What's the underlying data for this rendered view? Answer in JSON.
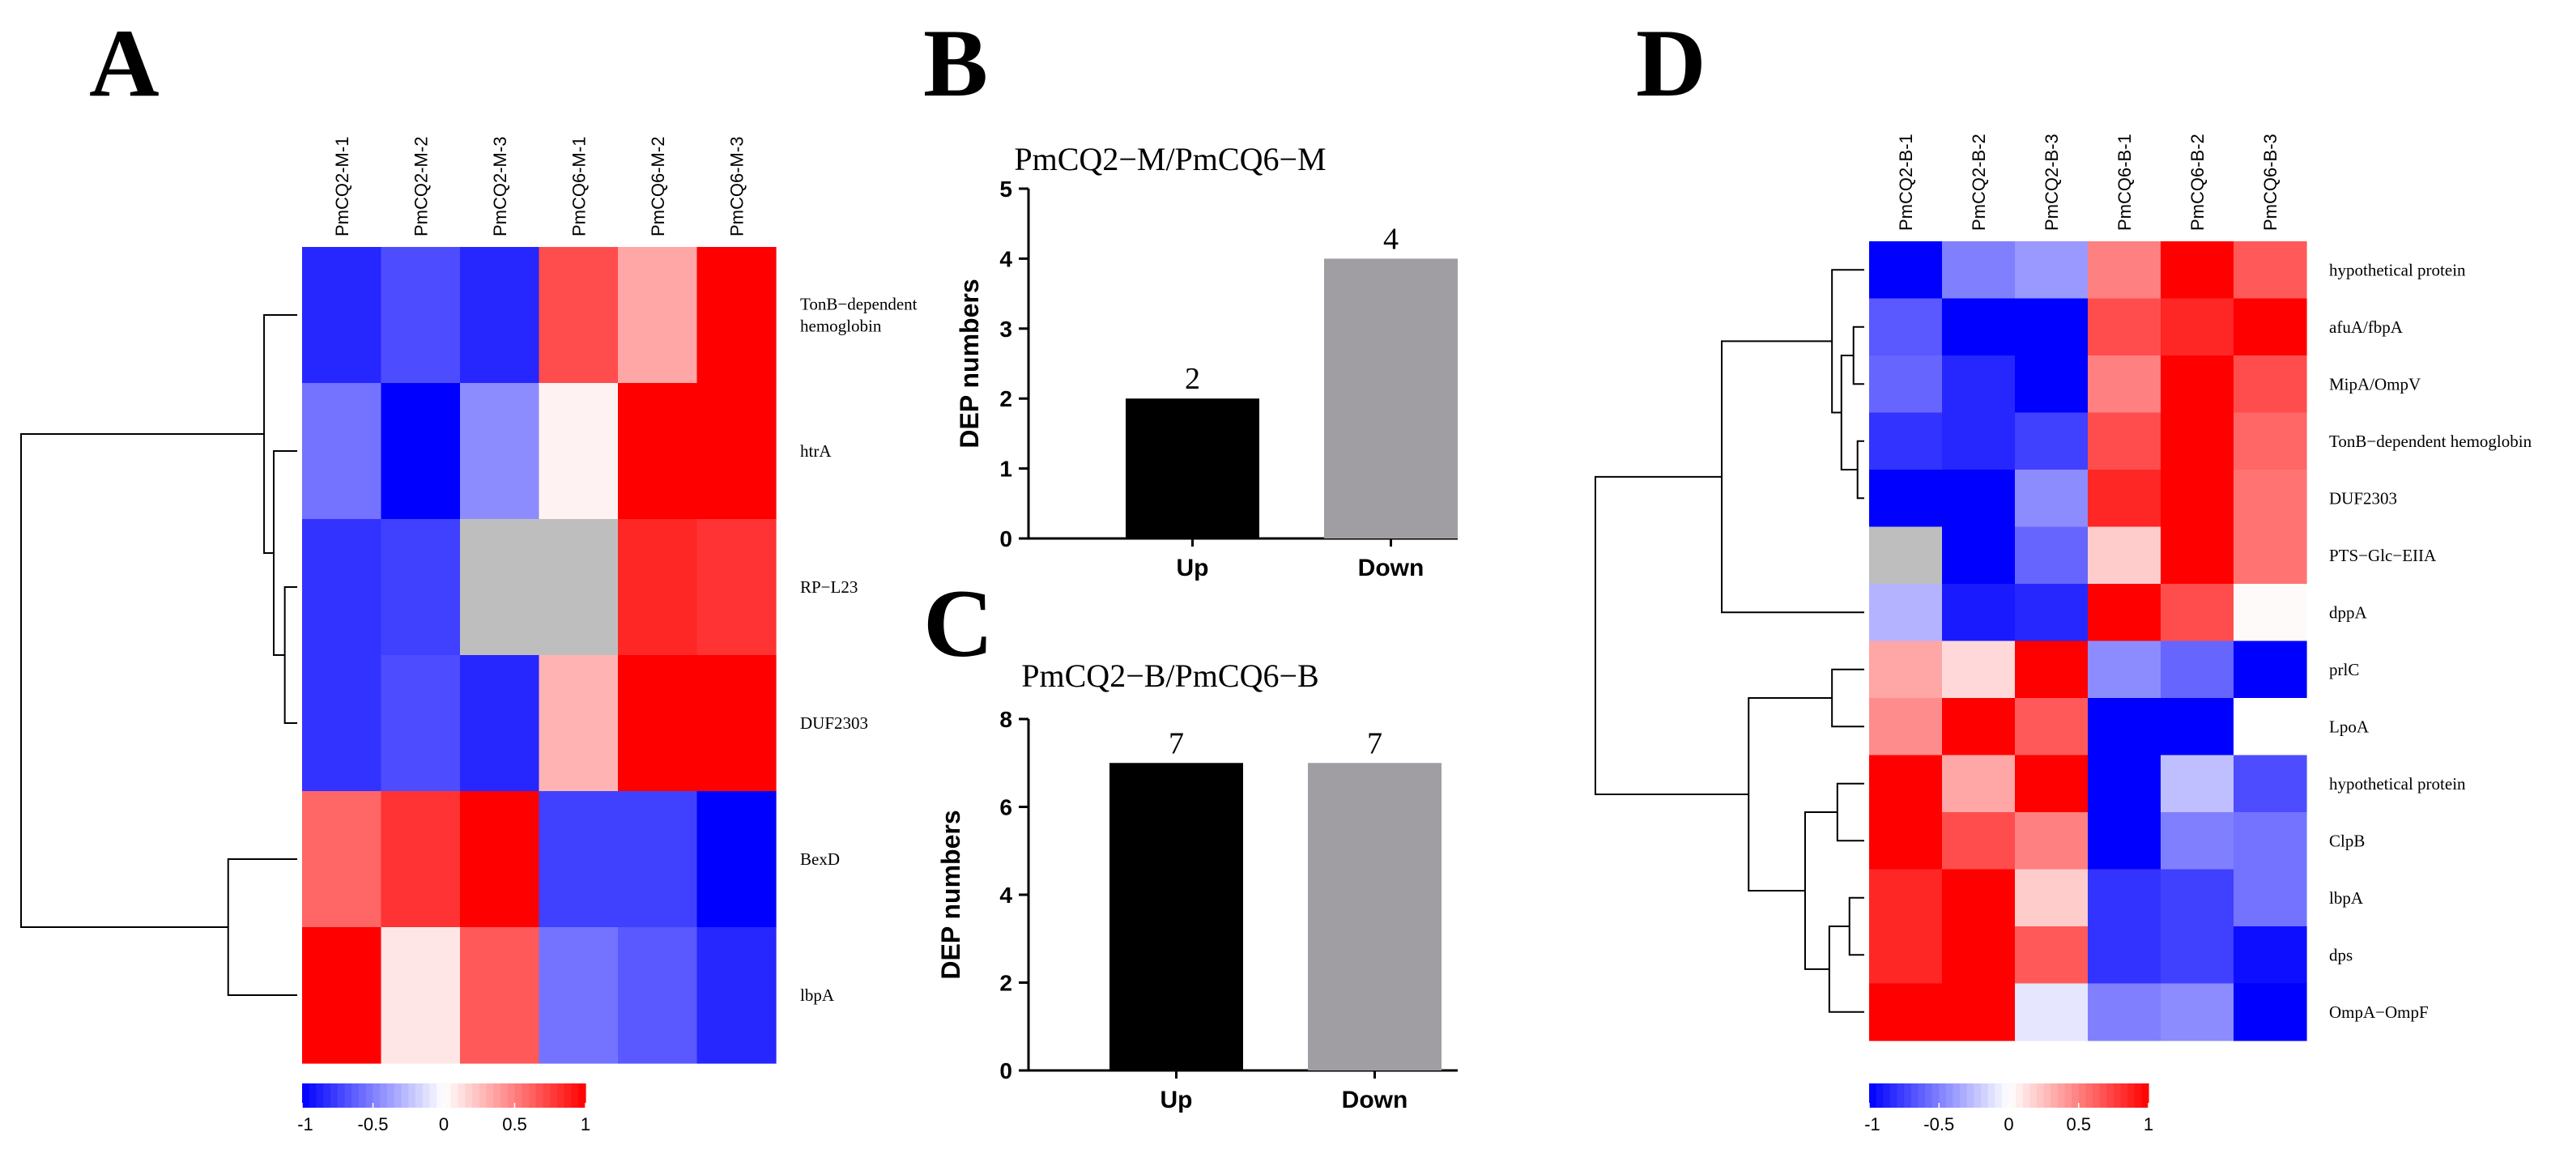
{
  "colors": {
    "up": "#000000",
    "down": "#a19ea3",
    "high": "#ff0000",
    "mid": "#ffffff",
    "low": "#0000ff",
    "missing": "#bebebe"
  },
  "chart_data": [
    {
      "id": "A",
      "type": "heatmap",
      "panel_label": "A",
      "columns": [
        "PmCQ2-M-1",
        "PmCQ2-M-2",
        "PmCQ2-M-3",
        "PmCQ6-M-1",
        "PmCQ6-M-2",
        "PmCQ6-M-3"
      ],
      "rows": [
        {
          "label_lines": [
            "TonB−dependent",
            "hemoglobin"
          ],
          "values": [
            -0.85,
            -0.7,
            -0.85,
            0.7,
            0.35,
            1.0
          ]
        },
        {
          "label_lines": [
            "htrA"
          ],
          "values": [
            -0.55,
            -1.0,
            -0.45,
            0.05,
            1.0,
            1.0
          ]
        },
        {
          "label_lines": [
            "RP−L23"
          ],
          "values": [
            -0.8,
            -0.75,
            null,
            null,
            0.85,
            0.8
          ]
        },
        {
          "label_lines": [
            "DUF2303"
          ],
          "values": [
            -0.8,
            -0.7,
            -0.85,
            0.3,
            1.0,
            1.0
          ]
        },
        {
          "label_lines": [
            "BexD"
          ],
          "values": [
            0.6,
            0.8,
            1.0,
            -0.75,
            -0.75,
            -1.0
          ]
        },
        {
          "label_lines": [
            "lbpA"
          ],
          "values": [
            1.0,
            0.1,
            0.65,
            -0.55,
            -0.65,
            -0.85
          ]
        }
      ],
      "legend": {
        "ticks": [
          "-1",
          "-0.5",
          "0",
          "0.5",
          "1"
        ],
        "range": [
          -1,
          1
        ]
      }
    },
    {
      "id": "B",
      "type": "bar",
      "panel_label": "B",
      "title": "PmCQ2−M/PmCQ6−M",
      "categories": [
        "Up",
        "Down"
      ],
      "values": [
        2,
        4
      ],
      "value_labels": [
        "2",
        "4"
      ],
      "ylabel": "DEP numbers",
      "ylim": [
        0,
        5
      ],
      "yticks": [
        "0",
        "1",
        "2",
        "3",
        "4",
        "5"
      ]
    },
    {
      "id": "C",
      "type": "bar",
      "panel_label": "C",
      "title": "PmCQ2−B/PmCQ6−B",
      "categories": [
        "Up",
        "Down"
      ],
      "values": [
        7,
        7
      ],
      "value_labels": [
        "7",
        "7"
      ],
      "ylabel": "DEP numbers",
      "ylim": [
        0,
        8
      ],
      "yticks": [
        "0",
        "2",
        "4",
        "6",
        "8"
      ]
    },
    {
      "id": "D",
      "type": "heatmap",
      "panel_label": "D",
      "columns": [
        "PmCQ2-B-1",
        "PmCQ2-B-2",
        "PmCQ2-B-3",
        "PmCQ6-B-1",
        "PmCQ6-B-2",
        "PmCQ6-B-3"
      ],
      "rows": [
        {
          "label_lines": [
            "hypothetical protein"
          ],
          "values": [
            -1.0,
            -0.5,
            -0.4,
            0.5,
            1.0,
            0.65
          ]
        },
        {
          "label_lines": [
            "afuA/fbpA"
          ],
          "values": [
            -0.65,
            -1.0,
            -1.0,
            0.7,
            0.85,
            1.0
          ]
        },
        {
          "label_lines": [
            "MipA/OmpV"
          ],
          "values": [
            -0.6,
            -0.85,
            -1.0,
            0.5,
            1.0,
            0.7
          ]
        },
        {
          "label_lines": [
            "TonB−dependent hemoglobin"
          ],
          "values": [
            -0.8,
            -0.85,
            -0.75,
            0.7,
            1.0,
            0.6
          ]
        },
        {
          "label_lines": [
            "DUF2303"
          ],
          "values": [
            -1.0,
            -1.0,
            -0.45,
            0.85,
            1.0,
            0.55
          ]
        },
        {
          "label_lines": [
            "PTS−Glc−EIIA"
          ],
          "values": [
            null,
            -1.0,
            -0.6,
            0.2,
            1.0,
            0.55
          ]
        },
        {
          "label_lines": [
            "dppA"
          ],
          "values": [
            -0.3,
            -0.9,
            -0.85,
            1.0,
            0.7,
            0.02
          ]
        },
        {
          "label_lines": [
            "prlC"
          ],
          "values": [
            0.35,
            0.15,
            1.0,
            -0.45,
            -0.6,
            -1.0
          ]
        },
        {
          "label_lines": [
            "LpoA"
          ],
          "values": [
            0.45,
            1.0,
            0.65,
            -1.0,
            -1.0,
            0.0
          ]
        },
        {
          "label_lines": [
            "hypothetical protein"
          ],
          "values": [
            1.0,
            0.35,
            1.0,
            -1.0,
            -0.25,
            -0.7
          ]
        },
        {
          "label_lines": [
            "ClpB"
          ],
          "values": [
            1.0,
            0.7,
            0.5,
            -1.0,
            -0.5,
            -0.55
          ]
        },
        {
          "label_lines": [
            "lbpA"
          ],
          "values": [
            0.85,
            1.0,
            0.2,
            -0.8,
            -0.75,
            -0.55
          ]
        },
        {
          "label_lines": [
            "dps"
          ],
          "values": [
            0.85,
            1.0,
            0.65,
            -0.8,
            -0.75,
            -0.95
          ]
        },
        {
          "label_lines": [
            "OmpA−OmpF"
          ],
          "values": [
            1.0,
            1.0,
            -0.1,
            -0.5,
            -0.45,
            -1.0
          ]
        }
      ],
      "legend": {
        "ticks": [
          "-1",
          "-0.5",
          "0",
          "0.5",
          "1"
        ],
        "range": [
          -1,
          1
        ]
      }
    }
  ]
}
